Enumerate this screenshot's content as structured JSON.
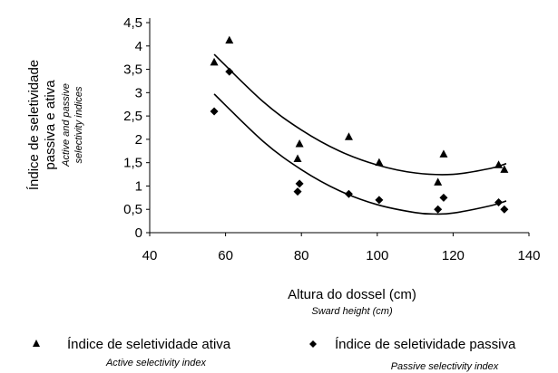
{
  "chart_data": {
    "type": "scatter",
    "title": "",
    "xlabel": "Altura do dossel (cm)",
    "xlabel_en": "Sward height (cm)",
    "ylabel": [
      "Índice de seletividade",
      "passiva e ativa"
    ],
    "ylabel_en": [
      "Active and passive",
      "selectivity indices"
    ],
    "xlim": [
      40,
      140
    ],
    "ylim": [
      0,
      4.5
    ],
    "x_ticks": [
      "40",
      "60",
      "80",
      "100",
      "120",
      "140"
    ],
    "y_ticks": [
      "0",
      "0,5",
      "1",
      "1,5",
      "2",
      "2,5",
      "3",
      "3,5",
      "4",
      "4,5"
    ],
    "grid": false,
    "legend_position": "bottom",
    "series": [
      {
        "name": "Índice de seletividade ativa",
        "name_en": "Active selectivity index",
        "marker": "triangle",
        "color": "#000000",
        "points": [
          [
            57,
            3.65
          ],
          [
            61,
            4.12
          ],
          [
            79,
            1.58
          ],
          [
            79.5,
            1.9
          ],
          [
            92.5,
            2.05
          ],
          [
            100.5,
            1.5
          ],
          [
            116,
            1.08
          ],
          [
            117.5,
            1.68
          ],
          [
            132,
            1.45
          ],
          [
            133.5,
            1.35
          ]
        ],
        "trend": [
          [
            57,
            3.82
          ],
          [
            70,
            2.8
          ],
          [
            80,
            2.2
          ],
          [
            90,
            1.75
          ],
          [
            100,
            1.45
          ],
          [
            110,
            1.28
          ],
          [
            120,
            1.25
          ],
          [
            130,
            1.38
          ],
          [
            134,
            1.48
          ]
        ]
      },
      {
        "name": "Índice de seletividade passiva",
        "name_en": "Passive selectivity index",
        "marker": "diamond",
        "color": "#000000",
        "points": [
          [
            57,
            2.6
          ],
          [
            61,
            3.45
          ],
          [
            79,
            0.88
          ],
          [
            79.5,
            1.05
          ],
          [
            92.5,
            0.83
          ],
          [
            100.5,
            0.7
          ],
          [
            116,
            0.5
          ],
          [
            117.5,
            0.75
          ],
          [
            132,
            0.65
          ],
          [
            133.5,
            0.5
          ]
        ],
        "trend": [
          [
            57,
            2.97
          ],
          [
            70,
            1.95
          ],
          [
            80,
            1.35
          ],
          [
            90,
            0.9
          ],
          [
            100,
            0.6
          ],
          [
            110,
            0.43
          ],
          [
            115,
            0.4
          ],
          [
            120,
            0.42
          ],
          [
            130,
            0.58
          ],
          [
            134,
            0.68
          ]
        ]
      }
    ]
  }
}
